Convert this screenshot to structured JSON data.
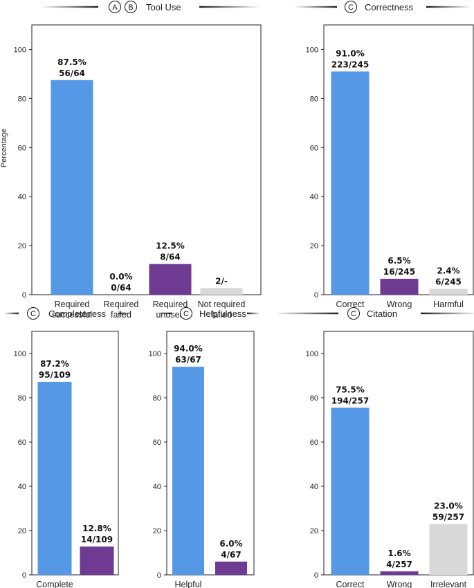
{
  "colors": {
    "blue": "#5599e6",
    "purple": "#6f3a92",
    "gray": "#d9d9d9",
    "frame": "#222222"
  },
  "ylabel": "Percentage",
  "yticks": [
    "0",
    "20",
    "40",
    "60",
    "80",
    "100"
  ],
  "chart_data": [
    {
      "id": "tool-use",
      "type": "bar",
      "badges": [
        "A",
        "B"
      ],
      "title": "Tool Use",
      "ylabel": "Percentage",
      "ylim": [
        0,
        110
      ],
      "categories": [
        [
          "Required",
          "successful"
        ],
        [
          "Required",
          "failed"
        ],
        [
          "Required",
          "unused"
        ],
        [
          "Not required",
          "failed"
        ]
      ],
      "values": [
        87.5,
        0.0,
        12.5,
        2.7
      ],
      "colors": [
        "blue",
        "blue",
        "purple",
        "gray"
      ],
      "labels": [
        [
          "87.5%",
          "56/64"
        ],
        [
          "0.0%",
          "0/64"
        ],
        [
          "12.5%",
          "8/64"
        ],
        [
          "2/-"
        ]
      ]
    },
    {
      "id": "correctness",
      "type": "bar",
      "badges": [
        "C"
      ],
      "title": "Correctness",
      "ylim": [
        0,
        110
      ],
      "categories": [
        [
          "Correct"
        ],
        [
          "Wrong"
        ],
        [
          "Harmful"
        ]
      ],
      "values": [
        91.0,
        6.5,
        2.4
      ],
      "colors": [
        "blue",
        "purple",
        "gray"
      ],
      "labels": [
        [
          "91.0%",
          "223/245"
        ],
        [
          "6.5%",
          "16/245"
        ],
        [
          "2.4%",
          "6/245"
        ]
      ]
    },
    {
      "id": "completeness",
      "type": "bar",
      "badges": [
        "C"
      ],
      "title": "Completeness",
      "ylim": [
        0,
        110
      ],
      "categories": [
        [
          "Complete"
        ],
        [
          "_"
        ]
      ],
      "values": [
        87.2,
        12.8
      ],
      "colors": [
        "blue",
        "purple"
      ],
      "labels": [
        [
          "87.2%",
          "95/109"
        ],
        [
          "12.8%",
          "14/109"
        ]
      ]
    },
    {
      "id": "helpfulness",
      "type": "bar",
      "badges": [
        "C"
      ],
      "title": "Helpfulness",
      "ylim": [
        0,
        110
      ],
      "categories": [
        [
          "Helpful"
        ],
        [
          "_"
        ]
      ],
      "values": [
        94.0,
        6.0
      ],
      "colors": [
        "blue",
        "purple"
      ],
      "labels": [
        [
          "94.0%",
          "63/67"
        ],
        [
          "6.0%",
          "4/67"
        ]
      ]
    },
    {
      "id": "citation",
      "type": "bar",
      "badges": [
        "C"
      ],
      "title": "Citation",
      "ylim": [
        0,
        110
      ],
      "categories": [
        [
          "Correct"
        ],
        [
          "Wrong"
        ],
        [
          "Irrelevant"
        ]
      ],
      "values": [
        75.5,
        1.6,
        23.0
      ],
      "colors": [
        "blue",
        "purple",
        "gray"
      ],
      "labels": [
        [
          "75.5%",
          "194/257"
        ],
        [
          "1.6%",
          "4/257"
        ],
        [
          "23.0%",
          "59/257"
        ]
      ]
    }
  ]
}
